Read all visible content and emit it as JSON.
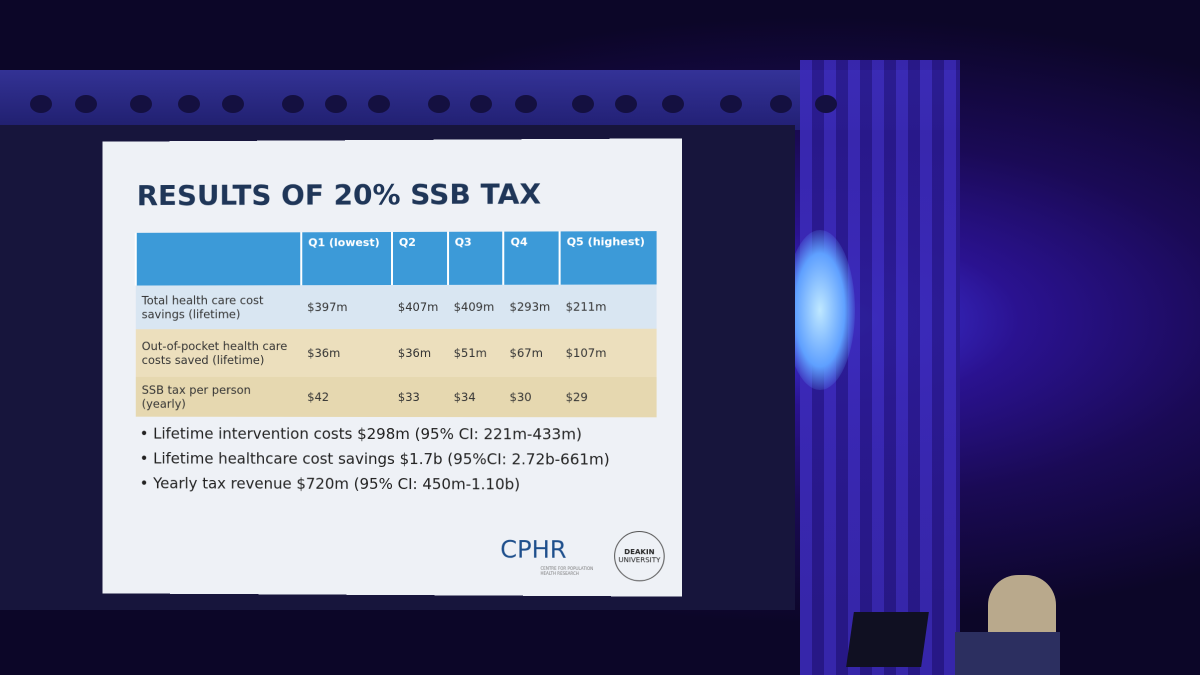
{
  "slide": {
    "title": "RESULTS OF 20% SSB TAX",
    "table": {
      "header": [
        "Q1 (lowest)",
        "Q2",
        "Q3",
        "Q4",
        "Q5 (highest)"
      ],
      "rows": [
        [
          "Total health care cost savings (lifetime)",
          "$397m",
          "$407m",
          "$409m",
          "$293m",
          "$211m"
        ],
        [
          "Out-of-pocket health care costs saved (lifetime)",
          "$36m",
          "$36m",
          "$51m",
          "$67m",
          "$107m"
        ],
        [
          "SSB tax per person (yearly)",
          "$42",
          "$33",
          "$34",
          "$30",
          "$29"
        ]
      ]
    },
    "bullets": [
      "Lifetime intervention costs $298m (95% CI: 221m-433m)",
      "Lifetime healthcare cost savings $1.7b (95%CI: 2.72b-661m)",
      "Yearly tax revenue $720m (95% CI: 450m-1.10b)"
    ],
    "logos": {
      "cphr": "CPHR",
      "cphr_sub": "CENTRE FOR POPULATION HEALTH RESEARCH",
      "deakin": "DEAKIN",
      "deakin_sub": "UNIVERSITY"
    }
  }
}
